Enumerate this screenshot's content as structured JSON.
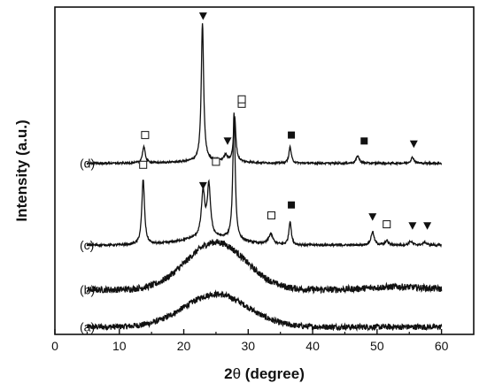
{
  "chart_data": {
    "type": "line",
    "xlabel_main": "2",
    "xlabel_theta": "θ",
    "xlabel_rest": " (degree)",
    "ylabel": "Intensity (a.u.)",
    "xlim": [
      0,
      65
    ],
    "xticks": [
      "0",
      "10",
      "20",
      "30",
      "40",
      "50",
      "60"
    ],
    "xtick_values": [
      0,
      10,
      20,
      30,
      40,
      50,
      60
    ],
    "x_range": [
      5,
      60
    ],
    "series": [
      {
        "name": "(a)",
        "baseline": 0.05,
        "humps": [
          {
            "center": 25,
            "width": 7,
            "height": 0.22
          }
        ],
        "peaks": [],
        "noise": 0.02
      },
      {
        "name": "(b)",
        "baseline": 0.3,
        "humps": [
          {
            "center": 25,
            "width": 6.5,
            "height": 0.32
          },
          {
            "center": 53,
            "width": 6,
            "height": 0.02
          }
        ],
        "peaks": [],
        "noise": 0.022
      },
      {
        "name": "(c)",
        "baseline": 0.6,
        "humps": [
          {
            "center": 24,
            "width": 6,
            "height": 0.05
          }
        ],
        "peaks": [
          {
            "x": 13.7,
            "h": 0.44,
            "w": 0.25
          },
          {
            "x": 23.0,
            "h": 0.3,
            "w": 0.32
          },
          {
            "x": 23.9,
            "h": 0.34,
            "w": 0.3
          },
          {
            "x": 27.8,
            "h": 0.85,
            "w": 0.22
          },
          {
            "x": 33.5,
            "h": 0.07,
            "w": 0.4
          },
          {
            "x": 36.5,
            "h": 0.16,
            "w": 0.22
          },
          {
            "x": 49.3,
            "h": 0.09,
            "w": 0.28
          },
          {
            "x": 51.5,
            "h": 0.03,
            "w": 0.3
          },
          {
            "x": 55.2,
            "h": 0.025,
            "w": 0.3
          },
          {
            "x": 57.4,
            "h": 0.02,
            "w": 0.3
          }
        ],
        "noise": 0.007
      },
      {
        "name": "(d)",
        "baseline": 1.15,
        "humps": [
          {
            "center": 24,
            "width": 6,
            "height": 0.015
          }
        ],
        "peaks": [
          {
            "x": 13.8,
            "h": 0.11,
            "w": 0.26
          },
          {
            "x": 22.9,
            "h": 0.93,
            "w": 0.22
          },
          {
            "x": 26.5,
            "h": 0.04,
            "w": 0.3
          },
          {
            "x": 27.9,
            "h": 0.3,
            "w": 0.22
          },
          {
            "x": 36.5,
            "h": 0.11,
            "w": 0.22
          },
          {
            "x": 47.0,
            "h": 0.05,
            "w": 0.28
          },
          {
            "x": 55.5,
            "h": 0.04,
            "w": 0.28
          }
        ],
        "noise": 0.006
      }
    ],
    "markers": [
      {
        "type": "open-square",
        "x": 14.0,
        "y": 1.34
      },
      {
        "type": "filled-triangle",
        "x": 23.0,
        "y": 2.14
      },
      {
        "type": "filled-triangle",
        "x": 26.8,
        "y": 1.3
      },
      {
        "type": "open-square",
        "x": 29.0,
        "y": 1.55
      },
      {
        "type": "filled-square",
        "x": 36.7,
        "y": 1.34
      },
      {
        "type": "filled-square",
        "x": 48.0,
        "y": 1.3
      },
      {
        "type": "filled-triangle",
        "x": 55.7,
        "y": 1.28
      },
      {
        "type": "open-square",
        "x": 13.7,
        "y": 1.14
      },
      {
        "type": "filled-triangle",
        "x": 23.0,
        "y": 1.0
      },
      {
        "type": "open-square",
        "x": 25.0,
        "y": 1.16
      },
      {
        "type": "open-square",
        "x": 29.0,
        "y": 1.58
      },
      {
        "type": "open-square",
        "x": 33.6,
        "y": 0.8
      },
      {
        "type": "filled-square",
        "x": 36.7,
        "y": 0.87
      },
      {
        "type": "filled-triangle",
        "x": 49.3,
        "y": 0.79
      },
      {
        "type": "open-square",
        "x": 51.5,
        "y": 0.74
      },
      {
        "type": "filled-triangle",
        "x": 55.5,
        "y": 0.73
      },
      {
        "type": "filled-triangle",
        "x": 57.8,
        "y": 0.73
      }
    ],
    "grid": false,
    "legend": "none"
  }
}
